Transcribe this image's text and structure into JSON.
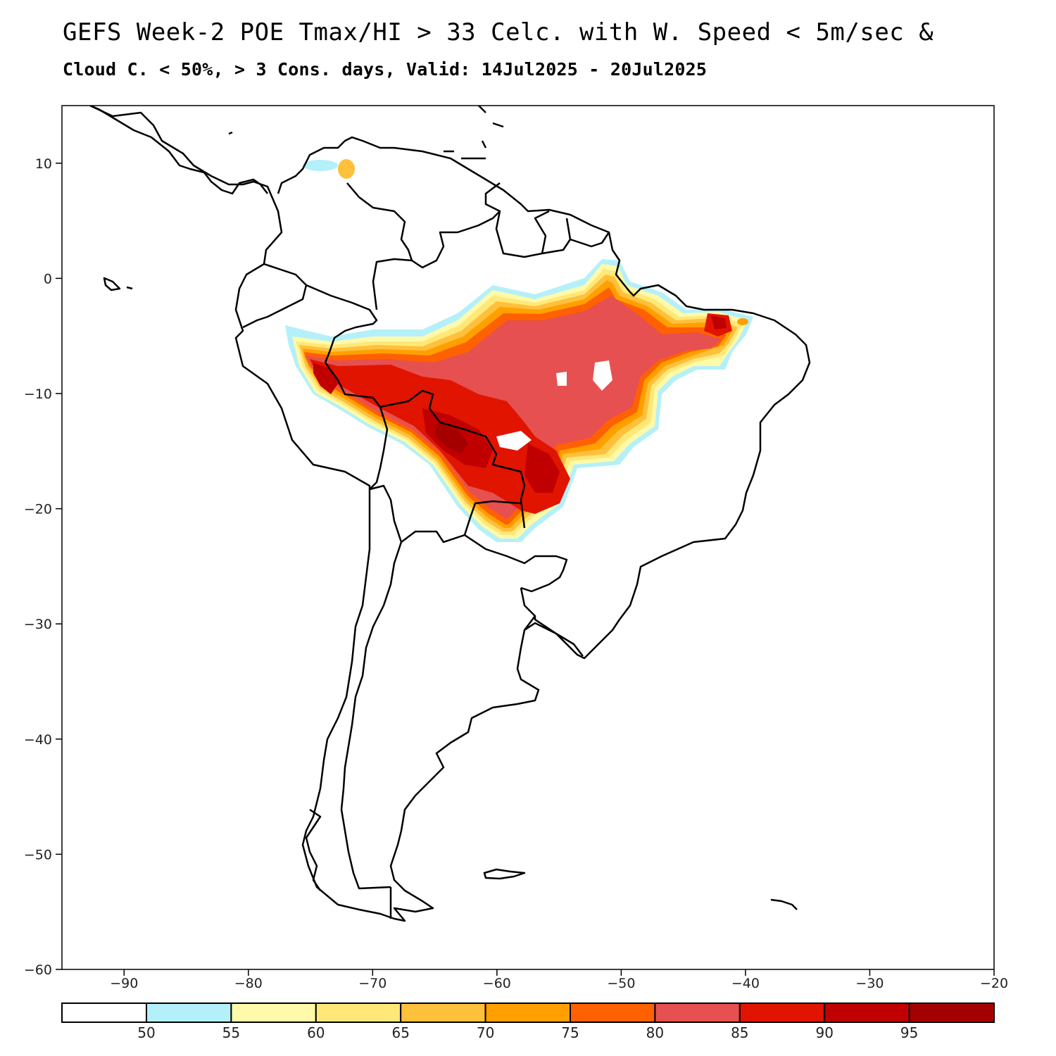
{
  "title": {
    "line1": "GEFS Week-2 POE Tmax/HI > 33 Celc. with W. Speed < 5m/sec &",
    "line2": "Cloud C. < 50%, > 3 Cons. days, Valid: 14Jul2025 - 20Jul2025"
  },
  "map": {
    "lon_range": [
      -95,
      -20
    ],
    "lat_range": [
      -60,
      15
    ],
    "lon_ticks": [
      -90,
      -80,
      -70,
      -60,
      -50,
      -40,
      -30,
      -20
    ],
    "lat_ticks": [
      10,
      0,
      -10,
      -20,
      -30,
      -40,
      -50,
      -60
    ],
    "lon_tick_labels": [
      "−90",
      "−80",
      "−70",
      "−60",
      "−50",
      "−40",
      "−30",
      "−20"
    ],
    "lat_tick_labels": [
      "10",
      "0",
      "−10",
      "−20",
      "−30",
      "−40",
      "−50",
      "−60"
    ]
  },
  "colorbar": {
    "labels": [
      "50",
      "55",
      "60",
      "65",
      "70",
      "75",
      "80",
      "85",
      "90",
      "95"
    ],
    "colors": [
      "#ffffff",
      "#b4f0fa",
      "#fffaaa",
      "#ffe878",
      "#ffc03c",
      "#ffa000",
      "#ff6000",
      "#e65050",
      "#e11400",
      "#c00000",
      "#a50000"
    ]
  }
}
